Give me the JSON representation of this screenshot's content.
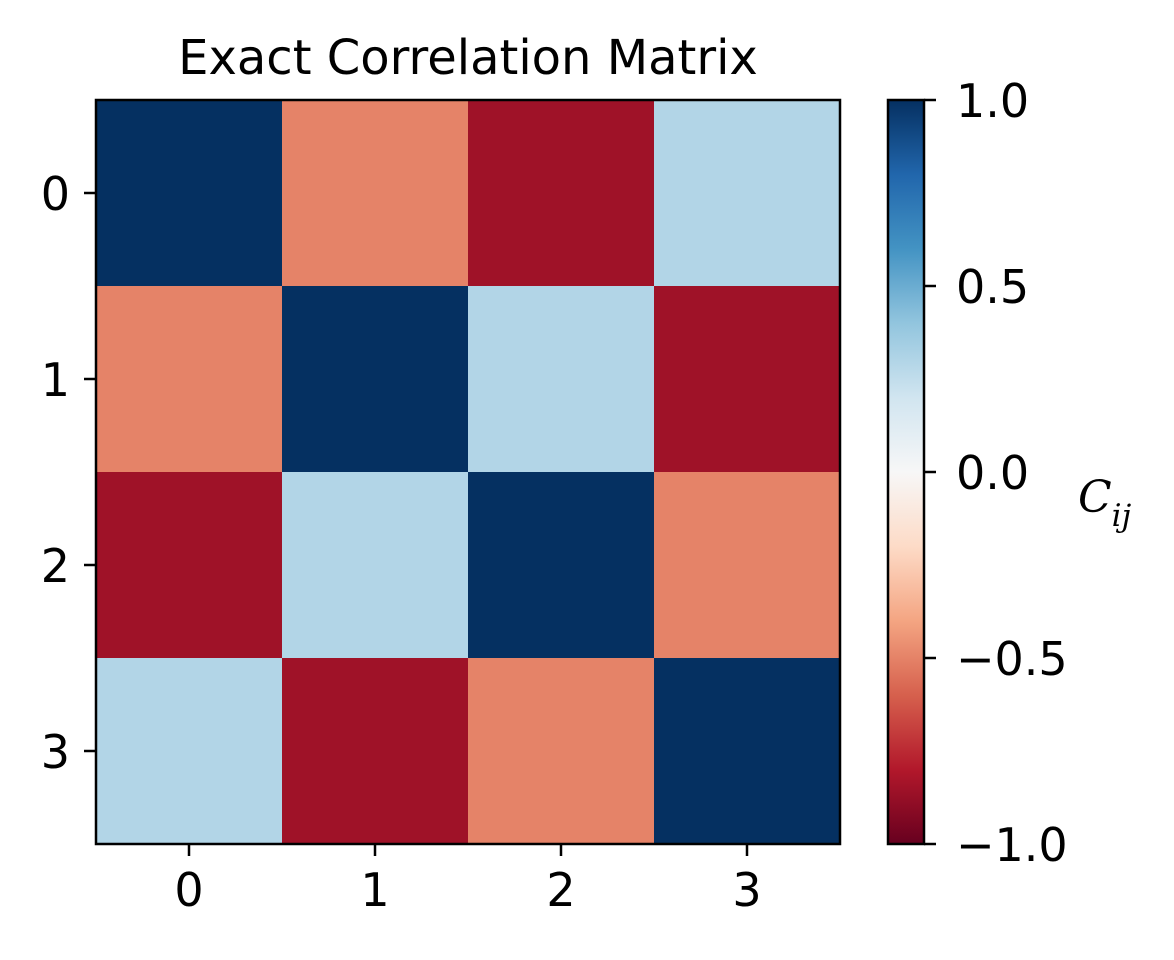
{
  "chart_data": {
    "type": "heatmap",
    "title": "Exact Correlation Matrix",
    "x_categories": [
      "0",
      "1",
      "2",
      "3"
    ],
    "y_categories": [
      "0",
      "1",
      "2",
      "3"
    ],
    "matrix": [
      [
        1.0,
        -0.5,
        -0.85,
        0.3
      ],
      [
        -0.5,
        1.0,
        0.3,
        -0.85
      ],
      [
        -0.85,
        0.3,
        1.0,
        -0.5
      ],
      [
        0.3,
        -0.85,
        -0.5,
        1.0
      ]
    ],
    "colorbar": {
      "label_main": "C",
      "label_sub": "ij",
      "range": [
        -1.0,
        1.0
      ],
      "ticks": [
        1.0,
        0.5,
        0.0,
        -0.5,
        -1.0
      ],
      "tick_labels": [
        "1.0",
        "0.5",
        "0.0",
        "−0.5",
        "−1.0"
      ],
      "colormap": "RdBu",
      "stops": [
        "#67001f",
        "#b2182b",
        "#d6604d",
        "#f4a582",
        "#fddbc7",
        "#f7f7f7",
        "#d1e5f0",
        "#92c5de",
        "#4393c3",
        "#2166ac",
        "#053061"
      ]
    }
  }
}
